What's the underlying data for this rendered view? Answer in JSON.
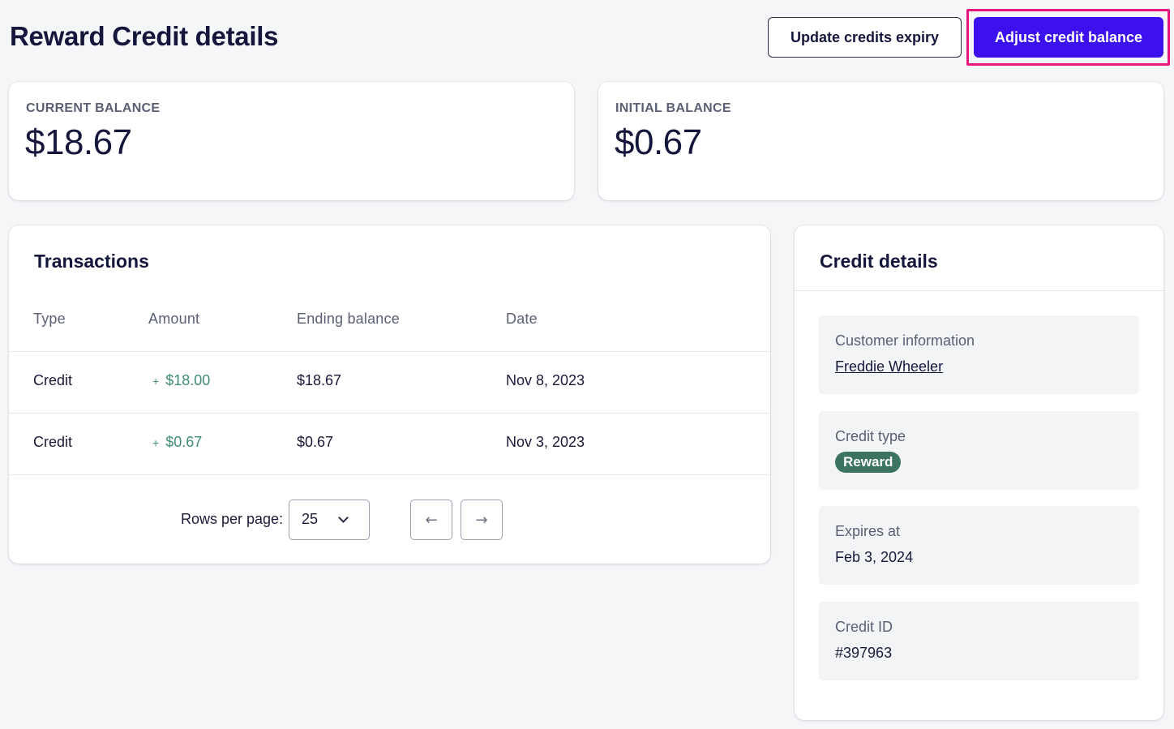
{
  "header": {
    "title": "Reward Credit details",
    "update_expiry_label": "Update credits expiry",
    "adjust_balance_label": "Adjust credit balance"
  },
  "balances": {
    "current": {
      "label": "CURRENT BALANCE",
      "value": "$18.67"
    },
    "initial": {
      "label": "INITIAL BALANCE",
      "value": "$0.67"
    }
  },
  "transactions": {
    "title": "Transactions",
    "columns": [
      "Type",
      "Amount",
      "Ending balance",
      "Date"
    ],
    "rows": [
      {
        "type": "Credit",
        "sign": "+",
        "amount": "$18.00",
        "ending_balance": "$18.67",
        "date": "Nov 8, 2023"
      },
      {
        "type": "Credit",
        "sign": "+",
        "amount": "$0.67",
        "ending_balance": "$0.67",
        "date": "Nov 3, 2023"
      }
    ],
    "pagination": {
      "rows_per_page_label": "Rows per page:",
      "rows_per_page_value": "25",
      "prev_icon": "arrow-left-icon",
      "next_icon": "arrow-right-icon"
    }
  },
  "credit_details": {
    "title": "Credit details",
    "customer": {
      "label": "Customer information",
      "value": "Freddie Wheeler"
    },
    "credit_type": {
      "label": "Credit type",
      "value": "Reward"
    },
    "expires": {
      "label": "Expires at",
      "value": "Feb 3, 2024"
    },
    "credit_id": {
      "label": "Credit ID",
      "value": "#397963"
    }
  },
  "colors": {
    "primary": "#3d10f0",
    "highlight": "#e8177e",
    "positive_amount": "#3f8d74",
    "badge": "#3d7363"
  }
}
